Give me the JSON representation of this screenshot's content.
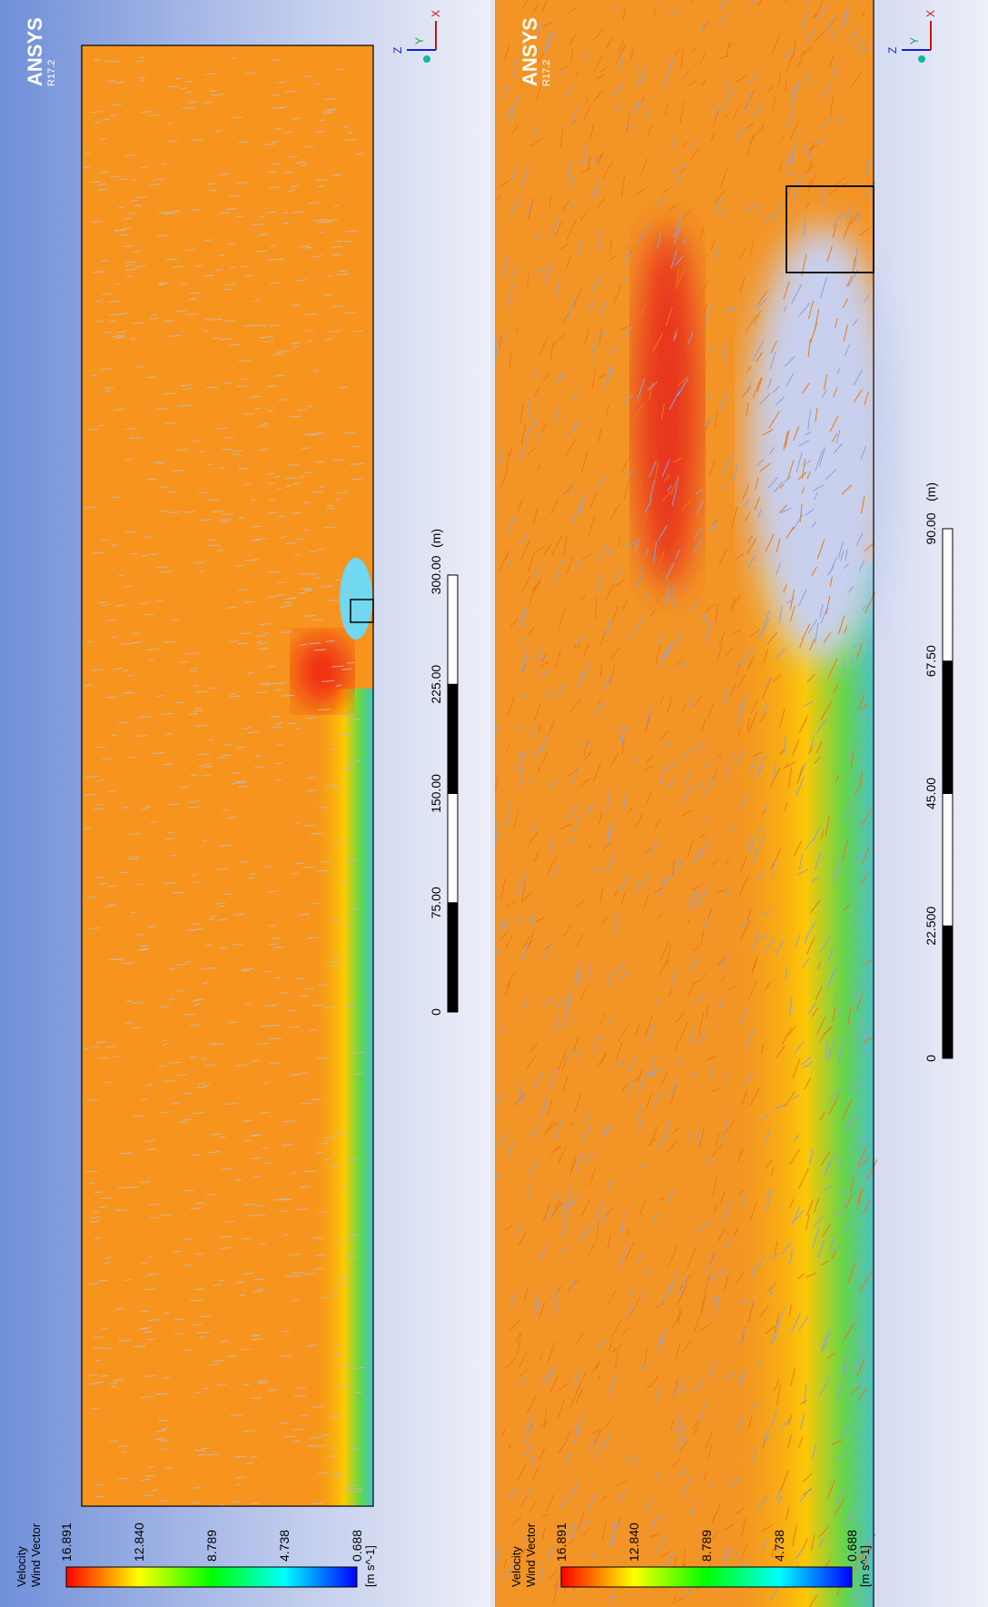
{
  "panels": [
    {
      "logo": "ANSYS",
      "version": "R17.2",
      "legend": {
        "title": "Velocity",
        "subtitle": "Wind Vector",
        "values": [
          "16.891",
          "12.840",
          "8.789",
          "4.738",
          "0.688"
        ],
        "unit": "[m s^-1]"
      },
      "scale": {
        "ticks": [
          "0",
          "75.00",
          "150.00",
          "225.00",
          "300.00"
        ],
        "unit": "(m)"
      },
      "triad": [
        "Z",
        "Y",
        "X"
      ]
    },
    {
      "logo": "ANSYS",
      "version": "R17.2",
      "legend": {
        "title": "Velocity",
        "subtitle": "Wind Vector",
        "values": [
          "16.891",
          "12.840",
          "8.789",
          "4.738",
          "0.688"
        ],
        "unit": "[m s^-1]"
      },
      "scale": {
        "ticks": [
          "0",
          "22.500",
          "45.00",
          "67.50",
          "90.00"
        ],
        "unit": "(m)"
      },
      "triad": [
        "Z",
        "Y",
        "X"
      ]
    }
  ]
}
